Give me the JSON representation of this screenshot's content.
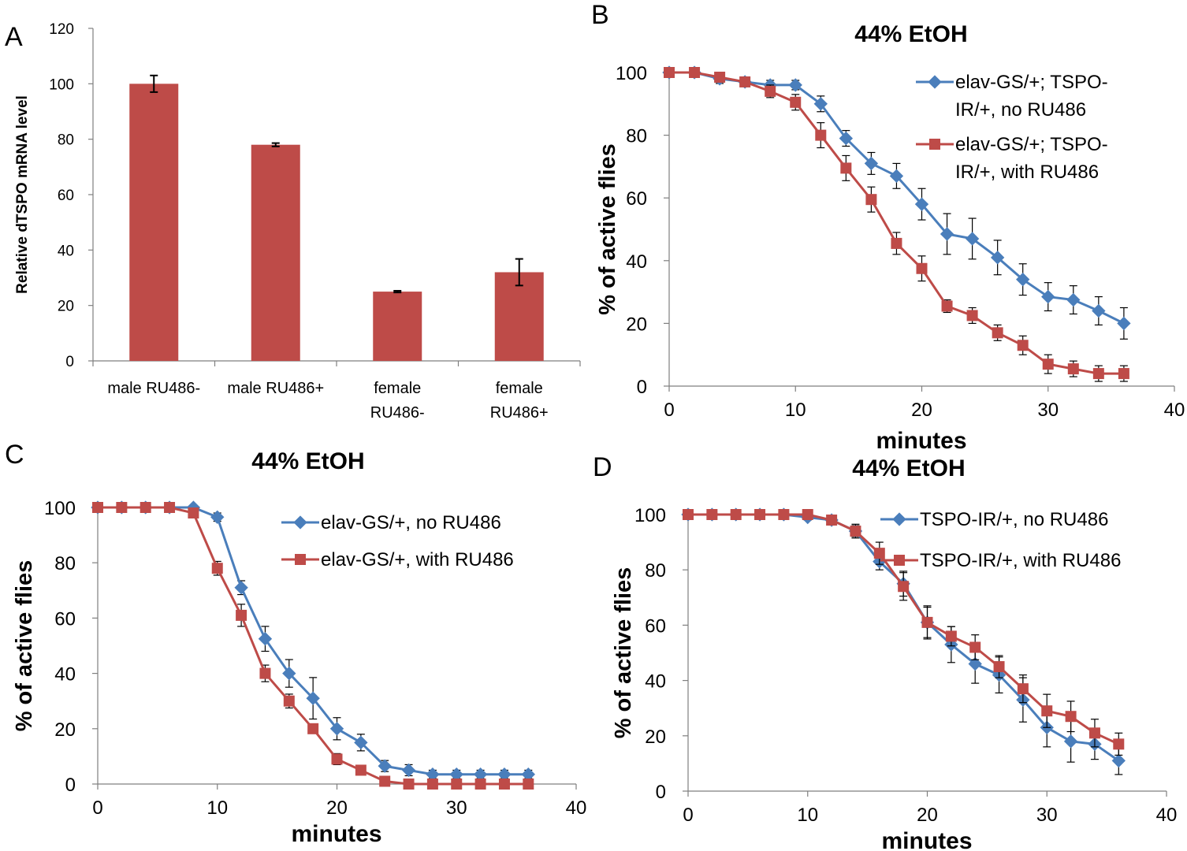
{
  "colors": {
    "blue": "#4a7ebb",
    "red": "#be4b48",
    "axis": "#7f7f7f",
    "err": "#000000"
  },
  "chart_data": [
    {
      "panel": "A",
      "type": "bar",
      "title": "",
      "ylabel": "Relative dTSPO mRNA level",
      "xlabel": "",
      "ylim": [
        0,
        120
      ],
      "yticks": [
        0,
        20,
        40,
        60,
        80,
        100,
        120
      ],
      "categories": [
        [
          "male RU486-"
        ],
        [
          "male RU486+"
        ],
        [
          "female",
          "RU486-"
        ],
        [
          "female",
          "RU486+"
        ]
      ],
      "values": [
        100,
        78,
        25,
        32
      ],
      "errors": [
        3,
        0.6,
        0.3,
        4.8
      ],
      "color": "#be4b48"
    },
    {
      "panel": "B",
      "type": "line",
      "title": "44% EtOH",
      "xlabel": "minutes",
      "ylabel": "% of active flies",
      "xlim": [
        0,
        40
      ],
      "ylim": [
        0,
        100
      ],
      "xticks": [
        0,
        10,
        20,
        30,
        40
      ],
      "yticks": [
        0,
        20,
        40,
        60,
        80,
        100
      ],
      "legend_position": "top-right",
      "series": [
        {
          "name": "elav-GS/+; TSPO-IR/+, no RU486",
          "legend_lines": [
            "elav-GS/+; TSPO-",
            "IR/+, no RU486"
          ],
          "marker": "diamond",
          "color": "#4a7ebb",
          "x": [
            0,
            2,
            4,
            6,
            8,
            10,
            12,
            14,
            16,
            18,
            20,
            22,
            24,
            26,
            28,
            30,
            32,
            34,
            36
          ],
          "y": [
            100,
            100,
            98,
            97,
            96,
            96,
            90,
            79,
            71,
            67,
            58,
            48.5,
            47,
            41,
            34,
            28.5,
            27.5,
            24,
            20
          ],
          "err": [
            0,
            0,
            1.5,
            1,
            1.5,
            1.5,
            2.5,
            2.5,
            3.5,
            4,
            5,
            6.5,
            6.5,
            5.5,
            5,
            4.5,
            4.5,
            4.5,
            5
          ]
        },
        {
          "name": "elav-GS/+; TSPO-IR/+, with RU486",
          "legend_lines": [
            "elav-GS/+; TSPO-",
            "IR/+, with RU486"
          ],
          "marker": "square",
          "color": "#be4b48",
          "x": [
            0,
            2,
            4,
            6,
            8,
            10,
            12,
            14,
            16,
            18,
            20,
            22,
            24,
            26,
            28,
            30,
            32,
            34,
            36
          ],
          "y": [
            100,
            100,
            98.5,
            97,
            94,
            90.5,
            80,
            69.5,
            59.5,
            45.5,
            37.5,
            25.5,
            22.5,
            17,
            13,
            7,
            5.5,
            4,
            4
          ],
          "err": [
            0,
            0,
            1,
            1,
            2,
            2.5,
            4,
            4,
            4,
            3.5,
            4,
            2,
            2.5,
            2.5,
            3,
            3,
            2.5,
            2.5,
            2.5
          ]
        }
      ]
    },
    {
      "panel": "C",
      "type": "line",
      "title": "44% EtOH",
      "xlabel": "minutes",
      "ylabel": "% of active flies",
      "xlim": [
        0,
        40
      ],
      "ylim": [
        0,
        100
      ],
      "xticks": [
        0,
        10,
        20,
        30,
        40
      ],
      "yticks": [
        0,
        20,
        40,
        60,
        80,
        100
      ],
      "legend_position": "top-right",
      "series": [
        {
          "name": "elav-GS/+, no RU486",
          "legend_lines": [
            "elav-GS/+, no RU486"
          ],
          "marker": "diamond",
          "color": "#4a7ebb",
          "x": [
            0,
            2,
            4,
            6,
            8,
            10,
            12,
            14,
            16,
            18,
            20,
            22,
            24,
            26,
            28,
            30,
            32,
            34,
            36
          ],
          "y": [
            100,
            100,
            100,
            100,
            100,
            96.5,
            71,
            52.5,
            40,
            31,
            20,
            15,
            6.5,
            5,
            3.5,
            3.5,
            3.5,
            3.5,
            3.5
          ],
          "err": [
            0,
            0,
            0,
            0,
            0,
            1.5,
            2.5,
            4.5,
            5,
            7.5,
            4,
            3,
            2,
            2,
            1.5,
            1.5,
            1.5,
            1.5,
            1.5
          ]
        },
        {
          "name": "elav-GS/+, with RU486",
          "legend_lines": [
            "elav-GS/+, with RU486"
          ],
          "marker": "square",
          "color": "#be4b48",
          "x": [
            0,
            2,
            4,
            6,
            8,
            10,
            12,
            14,
            16,
            18,
            20,
            22,
            24,
            26,
            28,
            30,
            32,
            34,
            36
          ],
          "y": [
            100,
            100,
            100,
            100,
            98,
            78,
            61,
            40,
            30,
            20,
            9,
            5,
            1,
            0,
            0,
            0,
            0,
            0,
            0
          ],
          "err": [
            0,
            0,
            0,
            0,
            1,
            2.5,
            4,
            3,
            2.5,
            1.5,
            2,
            1.5,
            0.8,
            0.5,
            0.5,
            0.5,
            0.5,
            0.5,
            0.5
          ]
        }
      ]
    },
    {
      "panel": "D",
      "type": "line",
      "title": "44% EtOH",
      "xlabel": "minutes",
      "ylabel": "% of active flies",
      "xlim": [
        0,
        40
      ],
      "ylim": [
        0,
        100
      ],
      "xticks": [
        0,
        10,
        20,
        30,
        40
      ],
      "yticks": [
        0,
        20,
        40,
        60,
        80,
        100
      ],
      "legend_position": "top-right",
      "series": [
        {
          "name": "TSPO-IR/+, no RU486",
          "legend_lines": [
            "TSPO-IR/+, no RU486"
          ],
          "marker": "diamond",
          "color": "#4a7ebb",
          "x": [
            0,
            2,
            4,
            6,
            8,
            10,
            12,
            14,
            16,
            18,
            20,
            22,
            24,
            26,
            28,
            30,
            32,
            34,
            36
          ],
          "y": [
            100,
            100,
            100,
            100,
            100,
            99,
            98,
            94,
            83,
            75,
            61,
            53,
            46,
            42,
            33,
            23,
            18,
            17,
            11
          ],
          "err": [
            0,
            0,
            0,
            0,
            0,
            1,
            1,
            2,
            3,
            4.5,
            6,
            6.5,
            7,
            6.5,
            8,
            7,
            7.5,
            5.5,
            5
          ]
        },
        {
          "name": "TSPO-IR/+, with RU486",
          "legend_lines": [
            "TSPO-IR/+, with RU486"
          ],
          "marker": "square",
          "color": "#be4b48",
          "x": [
            0,
            2,
            4,
            6,
            8,
            10,
            12,
            14,
            16,
            18,
            20,
            22,
            24,
            26,
            28,
            30,
            32,
            34,
            36
          ],
          "y": [
            100,
            100,
            100,
            100,
            100,
            100,
            98,
            94,
            86,
            74,
            61,
            56,
            52,
            45,
            37,
            29,
            27,
            21,
            17
          ],
          "err": [
            0,
            0,
            0,
            0,
            0,
            1,
            1,
            2.5,
            4,
            5,
            5.5,
            3.5,
            4.5,
            4,
            5,
            6,
            5.5,
            5,
            4
          ]
        }
      ]
    }
  ]
}
